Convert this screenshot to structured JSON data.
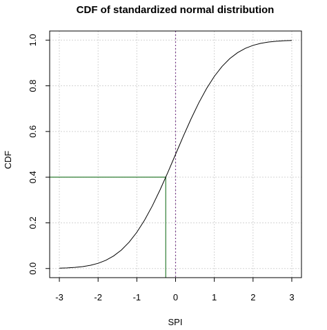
{
  "chart_data": {
    "type": "line",
    "title": "CDF of standardized normal distribution",
    "xlabel": "SPI",
    "ylabel": "CDF",
    "xlim": [
      -3.25,
      3.25
    ],
    "ylim": [
      -0.04,
      1.04
    ],
    "x_ticks": [
      -3,
      -2,
      -1,
      0,
      1,
      2,
      3
    ],
    "y_ticks": [
      0.0,
      0.2,
      0.4,
      0.6,
      0.8,
      1.0
    ],
    "x_tick_labels": [
      "-3",
      "-2",
      "-1",
      "0",
      "1",
      "2",
      "3"
    ],
    "y_tick_labels": [
      "0.0",
      "0.2",
      "0.4",
      "0.6",
      "0.8",
      "1.0"
    ],
    "grid": true,
    "series": [
      {
        "color": "#000000",
        "x": [
          -3.0,
          -2.8,
          -2.6,
          -2.4,
          -2.2,
          -2.0,
          -1.8,
          -1.6,
          -1.4,
          -1.2,
          -1.0,
          -0.8,
          -0.6,
          -0.4,
          -0.2,
          0.0,
          0.2,
          0.4,
          0.6,
          0.8,
          1.0,
          1.2,
          1.4,
          1.6,
          1.8,
          2.0,
          2.2,
          2.4,
          2.6,
          2.8,
          3.0
        ],
        "y": [
          0.0013,
          0.0026,
          0.0047,
          0.0082,
          0.0139,
          0.0228,
          0.0359,
          0.0548,
          0.0808,
          0.1151,
          0.1587,
          0.2119,
          0.2743,
          0.3446,
          0.4207,
          0.5,
          0.5793,
          0.6554,
          0.7257,
          0.7881,
          0.8413,
          0.8849,
          0.9192,
          0.9452,
          0.9641,
          0.9772,
          0.9861,
          0.9918,
          0.9953,
          0.9974,
          0.9987
        ]
      }
    ],
    "reference_lines": {
      "vertical_dotted": {
        "x": 0,
        "color": "#7b3f8c"
      },
      "green_marker": {
        "x": -0.2533,
        "y": 0.4,
        "color": "#2e7d32"
      }
    }
  }
}
